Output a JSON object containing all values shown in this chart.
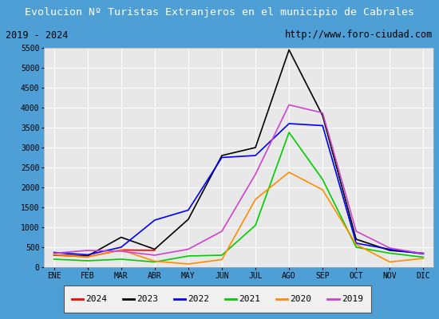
{
  "title": "Evolucion Nº Turistas Extranjeros en el municipio de Cabrales",
  "subtitle_left": "2019 - 2024",
  "subtitle_right": "http://www.foro-ciudad.com",
  "months": [
    "ENE",
    "FEB",
    "MAR",
    "ABR",
    "MAY",
    "JUN",
    "JUL",
    "AGO",
    "SEP",
    "OCT",
    "NOV",
    "DIC"
  ],
  "ylim": [
    0,
    5500
  ],
  "yticks": [
    0,
    500,
    1000,
    1500,
    2000,
    2500,
    3000,
    3500,
    4000,
    4500,
    5000,
    5500
  ],
  "series": {
    "2024": {
      "color": "#ff0000",
      "data": [
        300,
        260,
        430,
        420,
        null,
        null,
        null,
        null,
        null,
        null,
        null,
        null
      ]
    },
    "2023": {
      "color": "#000000",
      "data": [
        310,
        280,
        750,
        450,
        1200,
        2800,
        3000,
        5450,
        3800,
        700,
        420,
        350
      ]
    },
    "2022": {
      "color": "#0000ff",
      "data": [
        370,
        310,
        500,
        1180,
        1430,
        2750,
        2800,
        3600,
        3550,
        600,
        450,
        330
      ]
    },
    "2021": {
      "color": "#00cc00",
      "data": [
        200,
        160,
        200,
        130,
        280,
        300,
        1050,
        3380,
        2200,
        500,
        350,
        250
      ]
    },
    "2020": {
      "color": "#ff8c00",
      "data": [
        310,
        260,
        430,
        150,
        80,
        190,
        1700,
        2380,
        1940,
        570,
        130,
        220
      ]
    },
    "2019": {
      "color": "#cc44cc",
      "data": [
        350,
        420,
        400,
        300,
        450,
        900,
        2330,
        4070,
        3870,
        900,
        480,
        340
      ]
    }
  },
  "title_bg": "#4d9fd6",
  "title_color": "#ffffff",
  "plot_bg": "#e8e8e8",
  "grid_color": "#ffffff",
  "header_bg": "#ffffff",
  "outer_bg": "#4d9fd6",
  "legend_order": [
    "2024",
    "2023",
    "2022",
    "2021",
    "2020",
    "2019"
  ]
}
